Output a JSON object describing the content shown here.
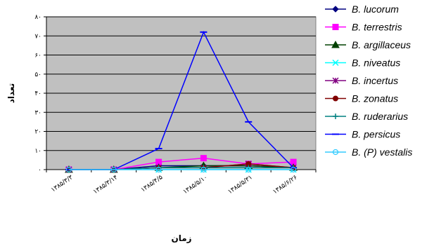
{
  "chart_data": {
    "type": "line",
    "xlabel": "زمان",
    "ylabel": "تعداد",
    "ylim": [
      0,
      80
    ],
    "yticks": [
      "۰",
      "۱۰",
      "۲۰",
      "۳۰",
      "۴۰",
      "۵۰",
      "۶۰",
      "۷۰",
      "۸۰"
    ],
    "categories": [
      "۱۳۸۵/۳/۳",
      "۱۳۸۵/۳/۱۴",
      "۱۳۸۵/۴/۵",
      "۱۳۸۵/۵/۱۰",
      "۱۳۸۵/۵/۳۱",
      "۱۳۸۵/۶/۲۶"
    ],
    "grid": true,
    "legend_position": "right",
    "plot_background": "#c0c0c0",
    "series": [
      {
        "name": "B. lucorum",
        "color": "#000080",
        "marker": "diamond",
        "values": [
          0,
          0,
          2,
          2,
          2,
          1
        ]
      },
      {
        "name": "B. terrestris",
        "color": "#ff00ff",
        "marker": "square",
        "values": [
          0,
          0,
          4,
          6,
          3,
          4
        ]
      },
      {
        "name": "B. argillaceus",
        "color": "#004000",
        "marker": "triangle",
        "values": [
          0,
          0,
          1,
          2,
          2,
          1
        ]
      },
      {
        "name": "B. niveatus",
        "color": "#00ffff",
        "marker": "x",
        "values": [
          0,
          0,
          0,
          0,
          0,
          0
        ]
      },
      {
        "name": "B. incertus",
        "color": "#800080",
        "marker": "star",
        "values": [
          0,
          0,
          1,
          1,
          3,
          1
        ]
      },
      {
        "name": "B. zonatus",
        "color": "#800000",
        "marker": "circle",
        "values": [
          0,
          0,
          1,
          1,
          3,
          1
        ]
      },
      {
        "name": "B. ruderarius",
        "color": "#008080",
        "marker": "plus",
        "values": [
          0,
          0,
          1,
          1,
          1,
          1
        ]
      },
      {
        "name": "B. persicus",
        "color": "#0000ff",
        "marker": "dash",
        "values": [
          0,
          0,
          11,
          72,
          25,
          1
        ]
      },
      {
        "name": "B. (P) vestalis",
        "color": "#33ccff",
        "marker": "open-circle",
        "values": [
          0,
          0,
          0,
          0,
          0,
          0
        ]
      }
    ]
  }
}
